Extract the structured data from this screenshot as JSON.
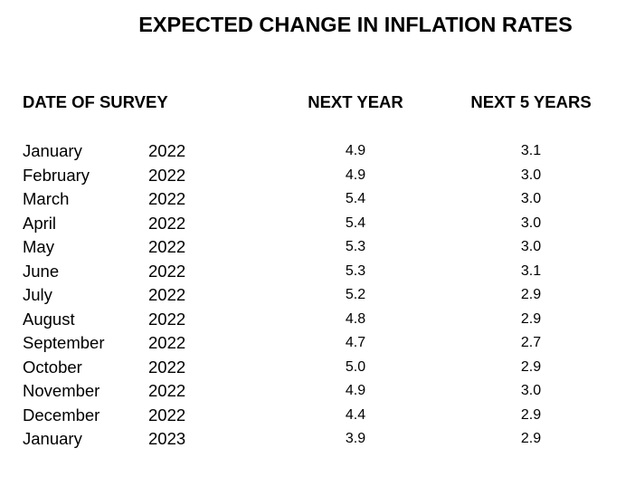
{
  "title": "EXPECTED CHANGE IN INFLATION RATES",
  "headers": {
    "date": "DATE OF SURVEY",
    "next_year": "NEXT YEAR",
    "next_5_years": "NEXT 5 YEARS"
  },
  "rows": [
    {
      "month": "January",
      "year": "2022",
      "next_year": "4.9",
      "next_5_years": "3.1"
    },
    {
      "month": "February",
      "year": "2022",
      "next_year": "4.9",
      "next_5_years": "3.0"
    },
    {
      "month": "March",
      "year": "2022",
      "next_year": "5.4",
      "next_5_years": "3.0"
    },
    {
      "month": "April",
      "year": "2022",
      "next_year": "5.4",
      "next_5_years": "3.0"
    },
    {
      "month": "May",
      "year": "2022",
      "next_year": "5.3",
      "next_5_years": "3.0"
    },
    {
      "month": "June",
      "year": "2022",
      "next_year": "5.3",
      "next_5_years": "3.1"
    },
    {
      "month": "July",
      "year": "2022",
      "next_year": "5.2",
      "next_5_years": "2.9"
    },
    {
      "month": "August",
      "year": "2022",
      "next_year": "4.8",
      "next_5_years": "2.9"
    },
    {
      "month": "September",
      "year": "2022",
      "next_year": "4.7",
      "next_5_years": "2.7"
    },
    {
      "month": "October",
      "year": "2022",
      "next_year": "5.0",
      "next_5_years": "2.9"
    },
    {
      "month": "November",
      "year": "2022",
      "next_year": "4.9",
      "next_5_years": "3.0"
    },
    {
      "month": "December",
      "year": "2022",
      "next_year": "4.4",
      "next_5_years": "2.9"
    },
    {
      "month": "January",
      "year": "2023",
      "next_year": "3.9",
      "next_5_years": "2.9"
    }
  ]
}
